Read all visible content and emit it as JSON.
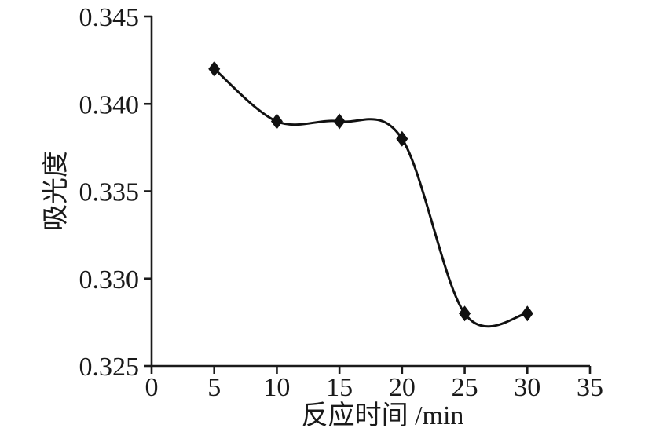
{
  "chart_data": {
    "type": "line",
    "title": "",
    "xlabel": "反应时间 /min",
    "ylabel": "吸光度",
    "x": [
      5,
      10,
      15,
      20,
      25,
      30
    ],
    "y": [
      0.342,
      0.339,
      0.339,
      0.338,
      0.328,
      0.328
    ],
    "xlim": [
      0,
      35
    ],
    "ylim": [
      0.325,
      0.345
    ],
    "xtick_values": [
      0,
      5,
      10,
      15,
      20,
      25,
      30,
      35
    ],
    "xtick_labels": [
      "0",
      "5",
      "10",
      "15",
      "20",
      "25",
      "30",
      "35"
    ],
    "ytick_values": [
      0.325,
      0.33,
      0.335,
      0.34,
      0.345
    ],
    "ytick_labels": [
      "0.325",
      "0.330",
      "0.335",
      "0.340",
      "0.345"
    ],
    "marker": "diamond",
    "smooth": true,
    "grid": false,
    "legend_position": "none",
    "line_color": "#111111",
    "marker_color": "#111111",
    "axis_color": "#1a1a1a",
    "text_color": "#1a1a1a",
    "background_color": "#ffffff"
  }
}
